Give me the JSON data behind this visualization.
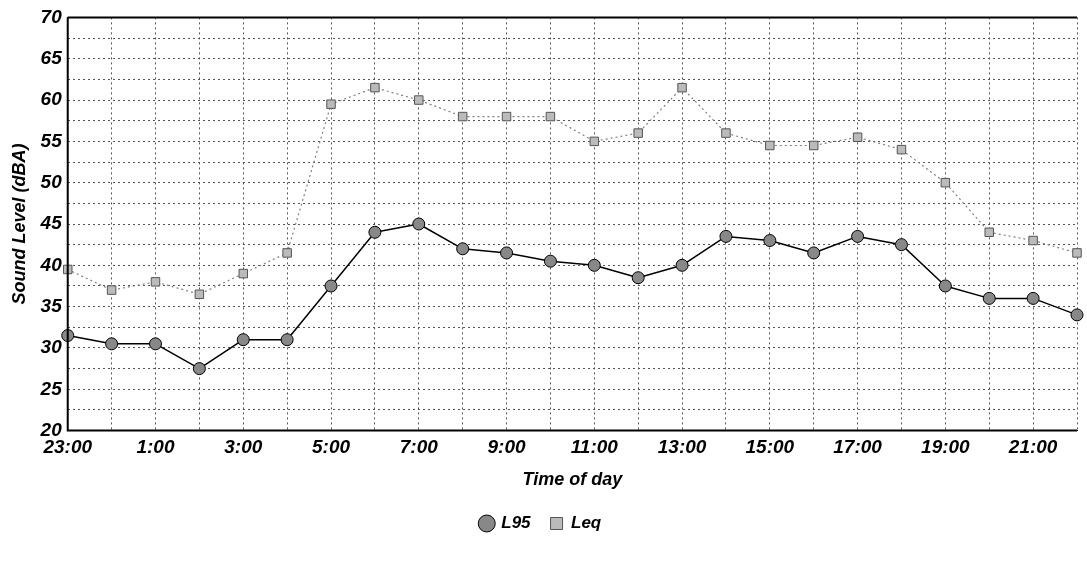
{
  "chart_data": {
    "type": "line",
    "xlabel": "Time of day",
    "ylabel": "Sound Level (dBA)",
    "categories": [
      "23:00",
      null,
      "1:00",
      null,
      "3:00",
      null,
      "5:00",
      null,
      "7:00",
      null,
      "9:00",
      null,
      "11:00",
      null,
      "13:00",
      null,
      "15:00",
      null,
      "17:00",
      null,
      "19:00",
      null,
      "21:00",
      null
    ],
    "series": [
      {
        "name": "L95",
        "color": "#000000",
        "marker": "circle",
        "line_style": "solid",
        "values": [
          31.5,
          30.5,
          30.5,
          27.5,
          31,
          31,
          37.5,
          44,
          45,
          42,
          41.5,
          40.5,
          40,
          38.5,
          40,
          43.5,
          43,
          41.5,
          43.5,
          42.5,
          37.5,
          36,
          36,
          34
        ]
      },
      {
        "name": "Leq",
        "color": "#808080",
        "marker": "square",
        "line_style": "dotted",
        "values": [
          39.5,
          37,
          38,
          36.5,
          39,
          41.5,
          59.5,
          61.5,
          60,
          58,
          58,
          58,
          55,
          56,
          61.5,
          56,
          54.5,
          54.5,
          55.5,
          54,
          50,
          44,
          43,
          41.5
        ]
      }
    ],
    "ylim": [
      20,
      70
    ],
    "yticks": [
      20,
      {
        "value": 22.5,
        "label": null
      },
      25,
      {
        "value": 27.5,
        "label": null
      },
      30,
      {
        "value": 32.5,
        "label": null
      },
      35,
      {
        "value": 37.5,
        "label": null
      },
      40,
      {
        "value": 42.5,
        "label": null
      },
      45,
      {
        "value": 47.5,
        "label": null
      },
      50,
      {
        "value": 52.5,
        "label": null
      },
      55,
      {
        "value": 57.5,
        "label": null
      },
      60,
      {
        "value": 62.5,
        "label": null
      },
      65,
      {
        "value": 67.5,
        "label": null
      },
      70
    ],
    "grid": true,
    "legend": "bottom"
  }
}
